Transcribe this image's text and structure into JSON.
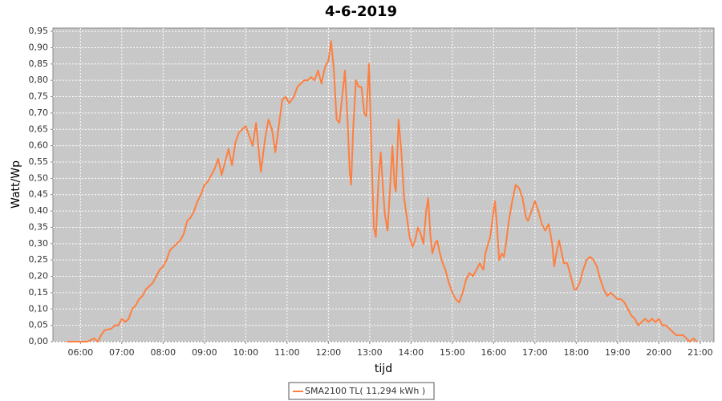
{
  "chart_data": {
    "type": "line",
    "title": "4-6-2019",
    "xlabel": "tijd",
    "ylabel": "Watt/Wp",
    "x": [
      "05:40",
      "06:00",
      "06:10",
      "06:20",
      "06:25",
      "06:30",
      "06:35",
      "06:45",
      "06:50",
      "06:55",
      "07:00",
      "07:05",
      "07:10",
      "07:15",
      "07:20",
      "07:25",
      "07:30",
      "07:35",
      "07:45",
      "07:50",
      "07:55",
      "08:00",
      "08:05",
      "08:10",
      "08:15",
      "08:20",
      "08:25",
      "08:30",
      "08:35",
      "08:40",
      "08:45",
      "08:50",
      "08:55",
      "09:00",
      "09:05",
      "09:10",
      "09:15",
      "09:20",
      "09:25",
      "09:30",
      "09:35",
      "09:40",
      "09:45",
      "09:50",
      "09:55",
      "10:00",
      "10:05",
      "10:10",
      "10:15",
      "10:20",
      "10:22",
      "10:28",
      "10:33",
      "10:38",
      "10:43",
      "10:48",
      "10:53",
      "10:58",
      "11:03",
      "11:10",
      "11:15",
      "11:20",
      "11:25",
      "11:30",
      "11:35",
      "11:40",
      "11:45",
      "11:50",
      "11:55",
      "12:00",
      "12:04",
      "12:08",
      "12:12",
      "12:16",
      "12:20",
      "12:24",
      "12:28",
      "12:31",
      "12:33",
      "12:36",
      "12:40",
      "12:44",
      "12:48",
      "12:52",
      "12:55",
      "12:59",
      "13:02",
      "13:06",
      "13:09",
      "13:13",
      "13:16",
      "13:19",
      "13:22",
      "13:26",
      "13:29",
      "13:33",
      "13:36",
      "13:38",
      "13:42",
      "13:46",
      "13:50",
      "13:54",
      "13:58",
      "14:02",
      "14:06",
      "14:10",
      "14:14",
      "14:18",
      "14:22",
      "14:25",
      "14:28",
      "14:31",
      "14:35",
      "14:38",
      "14:42",
      "14:46",
      "14:50",
      "14:55",
      "15:00",
      "15:05",
      "15:10",
      "15:15",
      "15:20",
      "15:25",
      "15:30",
      "15:35",
      "15:40",
      "15:45",
      "15:48",
      "15:52",
      "15:55",
      "15:58",
      "16:02",
      "16:05",
      "16:08",
      "16:12",
      "16:15",
      "16:18",
      "16:22",
      "16:27",
      "16:32",
      "16:37",
      "16:42",
      "16:47",
      "16:50",
      "16:55",
      "17:00",
      "17:05",
      "17:10",
      "17:15",
      "17:20",
      "17:25",
      "17:28",
      "17:32",
      "17:35",
      "17:38",
      "17:42",
      "17:47",
      "17:52",
      "17:57",
      "18:00",
      "18:05",
      "18:10",
      "18:15",
      "18:20",
      "18:25",
      "18:30",
      "18:35",
      "18:40",
      "18:45",
      "18:50",
      "18:55",
      "19:00",
      "19:05",
      "19:10",
      "19:15",
      "19:20",
      "19:25",
      "19:30",
      "19:35",
      "19:40",
      "19:45",
      "19:50",
      "19:55",
      "20:00",
      "20:05",
      "20:10",
      "20:15",
      "20:20",
      "20:25",
      "20:30",
      "20:35",
      "20:40",
      "20:45",
      "20:50",
      "20:55"
    ],
    "series": [
      {
        "name": "SMA2100 TL( 11,294 kWh )",
        "color": "#ff7f3f",
        "values": [
          0,
          0,
          0,
          0.01,
          0,
          0.02,
          0.035,
          0.04,
          0.05,
          0.05,
          0.07,
          0.06,
          0.07,
          0.1,
          0.11,
          0.13,
          0.14,
          0.16,
          0.18,
          0.2,
          0.22,
          0.23,
          0.25,
          0.28,
          0.29,
          0.3,
          0.31,
          0.33,
          0.37,
          0.38,
          0.4,
          0.43,
          0.45,
          0.48,
          0.49,
          0.51,
          0.53,
          0.56,
          0.51,
          0.55,
          0.59,
          0.54,
          0.61,
          0.64,
          0.65,
          0.66,
          0.63,
          0.6,
          0.67,
          0.56,
          0.52,
          0.62,
          0.68,
          0.65,
          0.58,
          0.66,
          0.74,
          0.75,
          0.73,
          0.75,
          0.78,
          0.79,
          0.8,
          0.8,
          0.81,
          0.8,
          0.83,
          0.79,
          0.84,
          0.86,
          0.92,
          0.83,
          0.68,
          0.67,
          0.75,
          0.83,
          0.67,
          0.52,
          0.48,
          0.65,
          0.8,
          0.78,
          0.78,
          0.7,
          0.69,
          0.85,
          0.62,
          0.35,
          0.32,
          0.5,
          0.58,
          0.48,
          0.39,
          0.34,
          0.45,
          0.6,
          0.48,
          0.46,
          0.68,
          0.58,
          0.44,
          0.38,
          0.32,
          0.29,
          0.31,
          0.35,
          0.33,
          0.3,
          0.4,
          0.44,
          0.33,
          0.27,
          0.3,
          0.31,
          0.27,
          0.24,
          0.22,
          0.18,
          0.15,
          0.13,
          0.12,
          0.15,
          0.19,
          0.21,
          0.2,
          0.22,
          0.24,
          0.22,
          0.27,
          0.3,
          0.32,
          0.37,
          0.43,
          0.35,
          0.25,
          0.27,
          0.26,
          0.3,
          0.37,
          0.43,
          0.48,
          0.47,
          0.44,
          0.38,
          0.37,
          0.4,
          0.43,
          0.4,
          0.36,
          0.34,
          0.36,
          0.3,
          0.23,
          0.28,
          0.31,
          0.28,
          0.24,
          0.24,
          0.2,
          0.16,
          0.16,
          0.18,
          0.22,
          0.25,
          0.26,
          0.25,
          0.23,
          0.19,
          0.16,
          0.14,
          0.15,
          0.14,
          0.13,
          0.13,
          0.12,
          0.1,
          0.08,
          0.07,
          0.05,
          0.06,
          0.07,
          0.06,
          0.07,
          0.06,
          0.07,
          0.05,
          0.05,
          0.04,
          0.03,
          0.02,
          0.02,
          0.02,
          0.01,
          0,
          0.01,
          0
        ]
      }
    ],
    "xlim": [
      "05:20",
      "21:20"
    ],
    "xticks": [
      "06:00",
      "07:00",
      "08:00",
      "09:00",
      "10:00",
      "11:00",
      "12:00",
      "13:00",
      "14:00",
      "15:00",
      "16:00",
      "17:00",
      "18:00",
      "19:00",
      "20:00",
      "21:00"
    ],
    "ylim": [
      0,
      0.96
    ],
    "yticks": [
      {
        "value": 0,
        "label": "0,00"
      },
      {
        "value": 0.05,
        "label": "0,05"
      },
      {
        "value": 0.1,
        "label": "0,10"
      },
      {
        "value": 0.15,
        "label": "0,15"
      },
      {
        "value": 0.2,
        "label": "0,20"
      },
      {
        "value": 0.25,
        "label": "0,25"
      },
      {
        "value": 0.3,
        "label": "0,30"
      },
      {
        "value": 0.35,
        "label": "0,35"
      },
      {
        "value": 0.4,
        "label": "0,40"
      },
      {
        "value": 0.45,
        "label": "0,45"
      },
      {
        "value": 0.5,
        "label": "0,50"
      },
      {
        "value": 0.55,
        "label": "0,55"
      },
      {
        "value": 0.6,
        "label": "0,60"
      },
      {
        "value": 0.65,
        "label": "0,65"
      },
      {
        "value": 0.7,
        "label": "0,70"
      },
      {
        "value": 0.75,
        "label": "0,75"
      },
      {
        "value": 0.8,
        "label": "0,80"
      },
      {
        "value": 0.85,
        "label": "0,85"
      },
      {
        "value": 0.9,
        "label": "0,90"
      },
      {
        "value": 0.95,
        "label": "0,95"
      }
    ],
    "grid": true,
    "legend": "bottom"
  }
}
